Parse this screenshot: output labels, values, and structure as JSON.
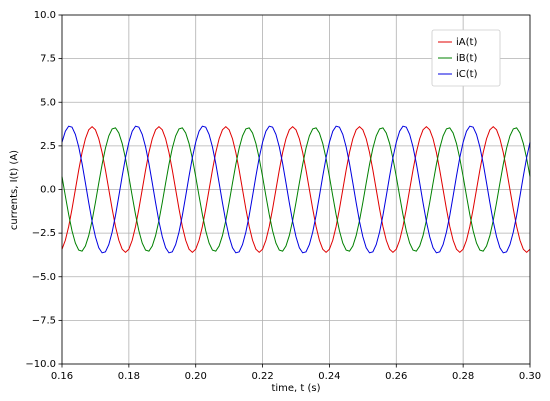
{
  "chart_data": {
    "type": "line",
    "xlabel": "time, t (s)",
    "ylabel": "currents, I(t) (A)",
    "xlim": [
      0.16,
      0.3
    ],
    "ylim": [
      -10,
      10
    ],
    "xticks": [
      0.16,
      0.18,
      {
        "value": 0.2,
        "label": "0.20"
      },
      0.22,
      0.24,
      0.26,
      0.28,
      {
        "value": 0.3,
        "label": "0.30"
      }
    ],
    "yticks": [
      {
        "value": -10,
        "label": "−10.0"
      },
      {
        "value": -7.5,
        "label": "−7.5"
      },
      {
        "value": -5,
        "label": "−5.0"
      },
      {
        "value": -2.5,
        "label": "−2.5"
      },
      {
        "value": 0,
        "label": "0.0"
      },
      2.5,
      {
        "value": 5,
        "label": "5.0"
      },
      7.5,
      {
        "value": 10,
        "label": "10.0"
      }
    ],
    "grid": true,
    "legend": "upper right",
    "x": [
      0.16,
      0.161,
      0.162,
      0.163,
      0.164,
      0.165,
      0.166,
      0.167,
      0.168,
      0.169,
      0.17,
      0.171,
      0.172,
      0.173,
      0.174,
      0.175,
      0.176,
      0.177,
      0.178,
      0.179,
      0.18,
      0.181,
      0.182,
      0.183,
      0.184,
      0.185,
      0.186,
      0.187,
      0.188,
      0.189,
      0.19,
      0.191,
      0.192,
      0.193,
      0.194,
      0.195,
      0.196,
      0.197,
      0.198,
      0.199,
      0.2,
      0.201,
      0.202,
      0.203,
      0.204,
      0.205,
      0.206,
      0.207,
      0.208,
      0.209,
      0.21,
      0.211,
      0.212,
      0.213,
      0.214,
      0.215,
      0.216,
      0.217,
      0.218,
      0.219,
      0.22,
      0.221,
      0.222,
      0.223,
      0.224,
      0.225,
      0.226,
      0.227,
      0.228,
      0.229,
      0.23,
      0.231,
      0.232,
      0.233,
      0.234,
      0.235,
      0.236,
      0.237,
      0.238,
      0.239,
      0.24,
      0.241,
      0.242,
      0.243,
      0.244,
      0.245,
      0.246,
      0.247,
      0.248,
      0.249,
      0.25,
      0.251,
      0.252,
      0.253,
      0.254,
      0.255,
      0.256,
      0.257,
      0.258,
      0.259,
      0.26,
      0.261,
      0.262,
      0.263,
      0.264,
      0.265,
      0.266,
      0.267,
      0.268,
      0.269,
      0.27,
      0.271,
      0.272,
      0.273,
      0.274,
      0.275,
      0.276,
      0.277,
      0.278,
      0.279,
      0.28,
      0.281,
      0.282,
      0.283,
      0.284,
      0.285,
      0.286,
      0.287,
      0.288,
      0.289,
      0.29,
      0.291,
      0.292,
      0.293,
      0.294,
      0.295,
      0.296,
      0.297,
      0.298,
      0.299,
      0.3
    ],
    "series": [
      {
        "name": "iA(t)",
        "color": "#e00000",
        "values": [
          -3.42,
          -2.91,
          -2.12,
          -1.11,
          0,
          1.11,
          2.12,
          2.91,
          3.42,
          3.6,
          3.42,
          2.91,
          2.12,
          1.11,
          0,
          -1.11,
          -2.12,
          -2.91,
          -3.42,
          -3.6,
          -3.42,
          -2.91,
          -2.12,
          -1.11,
          0,
          1.11,
          2.12,
          2.91,
          3.42,
          3.6,
          3.42,
          2.91,
          2.12,
          1.11,
          0,
          -1.11,
          -2.12,
          -2.91,
          -3.42,
          -3.6,
          -3.42,
          -2.91,
          -2.12,
          -1.11,
          0,
          1.11,
          2.12,
          2.91,
          3.42,
          3.6,
          3.42,
          2.91,
          2.12,
          1.11,
          0,
          -1.11,
          -2.12,
          -2.91,
          -3.42,
          -3.6,
          -3.42,
          -2.91,
          -2.12,
          -1.11,
          0,
          1.11,
          2.12,
          2.91,
          3.42,
          3.6,
          3.42,
          2.91,
          2.12,
          1.11,
          0,
          -1.11,
          -2.12,
          -2.91,
          -3.42,
          -3.6,
          -3.42,
          -2.91,
          -2.12,
          -1.11,
          0,
          1.11,
          2.12,
          2.91,
          3.42,
          3.6,
          3.42,
          2.91,
          2.12,
          1.11,
          0,
          -1.11,
          -2.12,
          -2.91,
          -3.42,
          -3.6,
          -3.42,
          -2.91,
          -2.12,
          -1.11,
          0,
          1.11,
          2.12,
          2.91,
          3.42,
          3.6,
          3.42,
          2.91,
          2.12,
          1.11,
          0,
          -1.11,
          -2.12,
          -2.91,
          -3.42,
          -3.6,
          -3.42,
          -2.91,
          -2.12,
          -1.11,
          0,
          1.11,
          2.12,
          2.91,
          3.42,
          3.6,
          3.42,
          2.91,
          2.12,
          1.11,
          0,
          -1.11,
          -2.12,
          -2.91,
          -3.42,
          -3.6,
          -3.42
        ]
      },
      {
        "name": "iB(t)",
        "color": "#008000",
        "values": [
          0.74,
          -0.37,
          -1.44,
          -2.37,
          -3.07,
          -3.47,
          -3.53,
          -3.24,
          -2.64,
          -1.78,
          -0.74,
          0.37,
          1.44,
          2.37,
          3.07,
          3.47,
          3.53,
          3.24,
          2.64,
          1.78,
          0.74,
          -0.37,
          -1.44,
          -2.37,
          -3.07,
          -3.47,
          -3.53,
          -3.24,
          -2.64,
          -1.78,
          -0.74,
          0.37,
          1.44,
          2.37,
          3.07,
          3.47,
          3.53,
          3.24,
          2.64,
          1.78,
          0.74,
          -0.37,
          -1.44,
          -2.37,
          -3.07,
          -3.47,
          -3.53,
          -3.24,
          -2.64,
          -1.78,
          -0.74,
          0.37,
          1.44,
          2.37,
          3.07,
          3.47,
          3.53,
          3.24,
          2.64,
          1.78,
          0.74,
          -0.37,
          -1.44,
          -2.37,
          -3.07,
          -3.47,
          -3.53,
          -3.24,
          -2.64,
          -1.78,
          -0.74,
          0.37,
          1.44,
          2.37,
          3.07,
          3.47,
          3.53,
          3.24,
          2.64,
          1.78,
          0.74,
          -0.37,
          -1.44,
          -2.37,
          -3.07,
          -3.47,
          -3.53,
          -3.24,
          -2.64,
          -1.78,
          -0.74,
          0.37,
          1.44,
          2.37,
          3.07,
          3.47,
          3.53,
          3.24,
          2.64,
          1.78,
          0.74,
          -0.37,
          -1.44,
          -2.37,
          -3.07,
          -3.47,
          -3.53,
          -3.24,
          -2.64,
          -1.78,
          -0.74,
          0.37,
          1.44,
          2.37,
          3.07,
          3.47,
          3.53,
          3.24,
          2.64,
          1.78,
          0.74,
          -0.37,
          -1.44,
          -2.37,
          -3.07,
          -3.47,
          -3.53,
          -3.24,
          -2.64,
          -1.78,
          -0.74,
          0.37,
          1.44,
          2.37,
          3.07,
          3.47,
          3.53,
          3.24,
          2.64,
          1.78,
          0.74
        ]
      },
      {
        "name": "iC(t)",
        "color": "#0000e0",
        "values": [
          2.71,
          3.34,
          3.63,
          3.57,
          3.16,
          2.44,
          1.49,
          0.38,
          -0.76,
          -1.83,
          -2.71,
          -3.34,
          -3.63,
          -3.57,
          -3.16,
          -2.44,
          -1.49,
          -0.38,
          0.76,
          1.83,
          2.71,
          3.34,
          3.63,
          3.57,
          3.16,
          2.44,
          1.49,
          0.38,
          -0.76,
          -1.83,
          -2.71,
          -3.34,
          -3.63,
          -3.57,
          -3.16,
          -2.44,
          -1.49,
          -0.38,
          0.76,
          1.83,
          2.71,
          3.34,
          3.63,
          3.57,
          3.16,
          2.44,
          1.49,
          0.38,
          -0.76,
          -1.83,
          -2.71,
          -3.34,
          -3.63,
          -3.57,
          -3.16,
          -2.44,
          -1.49,
          -0.38,
          0.76,
          1.83,
          2.71,
          3.34,
          3.63,
          3.57,
          3.16,
          2.44,
          1.49,
          0.38,
          -0.76,
          -1.83,
          -2.71,
          -3.34,
          -3.63,
          -3.57,
          -3.16,
          -2.44,
          -1.49,
          -0.38,
          0.76,
          1.83,
          2.71,
          3.34,
          3.63,
          3.57,
          3.16,
          2.44,
          1.49,
          0.38,
          -0.76,
          -1.83,
          -2.71,
          -3.34,
          -3.63,
          -3.57,
          -3.16,
          -2.44,
          -1.49,
          -0.38,
          0.76,
          1.83,
          2.71,
          3.34,
          3.63,
          3.57,
          3.16,
          2.44,
          1.49,
          0.38,
          -0.76,
          -1.83,
          -2.71,
          -3.34,
          -3.63,
          -3.57,
          -3.16,
          -2.44,
          -1.49,
          -0.38,
          0.76,
          1.83,
          2.71,
          3.34,
          3.63,
          3.57,
          3.16,
          2.44,
          1.49,
          0.38,
          -0.76,
          -1.83,
          -2.71,
          -3.34,
          -3.63,
          -3.57,
          -3.16,
          -2.44,
          -1.49,
          -0.38,
          0.76,
          1.83,
          2.71
        ]
      }
    ]
  }
}
